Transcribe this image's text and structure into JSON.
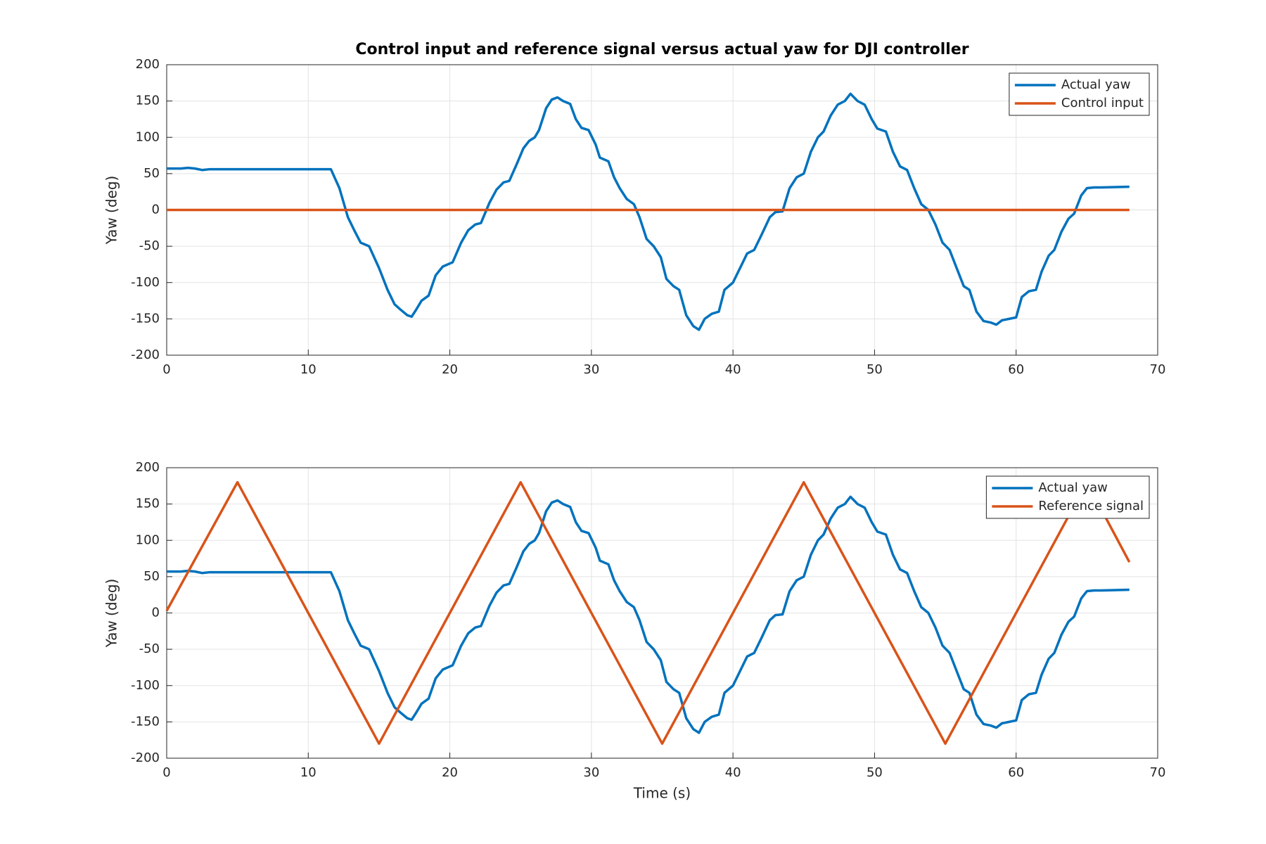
{
  "chart_data": [
    {
      "type": "line",
      "title": "Control input and reference signal versus actual yaw for DJI controller",
      "ylabel": "Yaw (deg)",
      "xlim": [
        0,
        70
      ],
      "xticks": [
        0,
        10,
        20,
        30,
        40,
        50,
        60,
        70
      ],
      "ylim": [
        -200,
        200
      ],
      "yticks": [
        -200,
        -150,
        -100,
        -50,
        0,
        50,
        100,
        150,
        200
      ],
      "grid": true,
      "legend": "northeast",
      "series": [
        {
          "name": "Actual yaw",
          "color": "#0072BD",
          "x": [
            0,
            0.5,
            1,
            1.5,
            2,
            2.5,
            3,
            11.6,
            12.2,
            12.8,
            13.3,
            13.7,
            14.3,
            15.0,
            15.6,
            16.1,
            16.5,
            17.0,
            17.3,
            17.6,
            18.0,
            18.5,
            19.0,
            19.5,
            20.2,
            20.8,
            21.3,
            21.8,
            22.2,
            22.8,
            23.3,
            23.8,
            24.2,
            24.7,
            25.2,
            25.6,
            26.0,
            26.3,
            26.8,
            27.2,
            27.6,
            28.0,
            28.5,
            28.9,
            29.3,
            29.8,
            30.3,
            30.6,
            31.2,
            31.6,
            32.0,
            32.5,
            33.0,
            33.4,
            33.9,
            34.4,
            34.9,
            35.3,
            35.8,
            36.2,
            36.7,
            37.2,
            37.6,
            38.0,
            38.5,
            39.0,
            39.4,
            40.0,
            40.5,
            41.0,
            41.5,
            42.0,
            42.6,
            43.0,
            43.5,
            44.0,
            44.5,
            45.0,
            45.5,
            46.0,
            46.4,
            46.9,
            47.4,
            47.9,
            48.3,
            48.8,
            49.3,
            49.8,
            50.2,
            50.8,
            51.3,
            51.8,
            52.3,
            52.8,
            53.3,
            53.8,
            54.3,
            54.8,
            55.3,
            55.8,
            56.3,
            56.7,
            57.2,
            57.7,
            58.2,
            58.6,
            59.0,
            59.5,
            60.0,
            60.4,
            60.9,
            61.4,
            61.8,
            62.3,
            62.7,
            63.2,
            63.7,
            64.1,
            64.6,
            65.0,
            65.5,
            66.0,
            68.0
          ],
          "values": [
            57,
            57,
            57,
            58,
            57,
            55,
            56,
            56,
            30,
            -10,
            -30,
            -45,
            -50,
            -80,
            -110,
            -130,
            -137,
            -145,
            -147,
            -138,
            -125,
            -118,
            -90,
            -78,
            -72,
            -45,
            -28,
            -20,
            -18,
            10,
            28,
            38,
            40,
            62,
            85,
            95,
            100,
            110,
            140,
            152,
            155,
            150,
            146,
            125,
            113,
            110,
            90,
            72,
            67,
            45,
            30,
            15,
            8,
            -10,
            -40,
            -50,
            -65,
            -95,
            -105,
            -110,
            -145,
            -160,
            -165,
            -150,
            -143,
            -140,
            -110,
            -100,
            -80,
            -60,
            -55,
            -35,
            -10,
            -3,
            -2,
            30,
            45,
            50,
            80,
            100,
            108,
            130,
            145,
            150,
            160,
            150,
            145,
            125,
            112,
            108,
            80,
            60,
            55,
            30,
            8,
            0,
            -20,
            -45,
            -55,
            -80,
            -105,
            -110,
            -140,
            -153,
            -155,
            -158,
            -152,
            -150,
            -148,
            -120,
            -112,
            -110,
            -85,
            -63,
            -55,
            -30,
            -12,
            -5,
            20,
            30,
            31,
            31,
            32
          ]
        },
        {
          "name": "Control input",
          "color": "#D95319",
          "x": [
            0,
            68
          ],
          "values": [
            0,
            0
          ]
        }
      ]
    },
    {
      "type": "line",
      "ylabel": "Yaw (deg)",
      "xlabel": "Time (s)",
      "xlim": [
        0,
        70
      ],
      "xticks": [
        0,
        10,
        20,
        30,
        40,
        50,
        60,
        70
      ],
      "ylim": [
        -200,
        200
      ],
      "yticks": [
        -200,
        -150,
        -100,
        -50,
        0,
        50,
        100,
        150,
        200
      ],
      "grid": true,
      "legend": "northeast",
      "series": [
        {
          "name": "Actual yaw",
          "color": "#0072BD",
          "x": [
            0,
            0.5,
            1,
            1.5,
            2,
            2.5,
            3,
            11.6,
            12.2,
            12.8,
            13.3,
            13.7,
            14.3,
            15.0,
            15.6,
            16.1,
            16.5,
            17.0,
            17.3,
            17.6,
            18.0,
            18.5,
            19.0,
            19.5,
            20.2,
            20.8,
            21.3,
            21.8,
            22.2,
            22.8,
            23.3,
            23.8,
            24.2,
            24.7,
            25.2,
            25.6,
            26.0,
            26.3,
            26.8,
            27.2,
            27.6,
            28.0,
            28.5,
            28.9,
            29.3,
            29.8,
            30.3,
            30.6,
            31.2,
            31.6,
            32.0,
            32.5,
            33.0,
            33.4,
            33.9,
            34.4,
            34.9,
            35.3,
            35.8,
            36.2,
            36.7,
            37.2,
            37.6,
            38.0,
            38.5,
            39.0,
            39.4,
            40.0,
            40.5,
            41.0,
            41.5,
            42.0,
            42.6,
            43.0,
            43.5,
            44.0,
            44.5,
            45.0,
            45.5,
            46.0,
            46.4,
            46.9,
            47.4,
            47.9,
            48.3,
            48.8,
            49.3,
            49.8,
            50.2,
            50.8,
            51.3,
            51.8,
            52.3,
            52.8,
            53.3,
            53.8,
            54.3,
            54.8,
            55.3,
            55.8,
            56.3,
            56.7,
            57.2,
            57.7,
            58.2,
            58.6,
            59.0,
            59.5,
            60.0,
            60.4,
            60.9,
            61.4,
            61.8,
            62.3,
            62.7,
            63.2,
            63.7,
            64.1,
            64.6,
            65.0,
            65.5,
            66.0,
            68.0
          ],
          "values": [
            57,
            57,
            57,
            58,
            57,
            55,
            56,
            56,
            30,
            -10,
            -30,
            -45,
            -50,
            -80,
            -110,
            -130,
            -137,
            -145,
            -147,
            -138,
            -125,
            -118,
            -90,
            -78,
            -72,
            -45,
            -28,
            -20,
            -18,
            10,
            28,
            38,
            40,
            62,
            85,
            95,
            100,
            110,
            140,
            152,
            155,
            150,
            146,
            125,
            113,
            110,
            90,
            72,
            67,
            45,
            30,
            15,
            8,
            -10,
            -40,
            -50,
            -65,
            -95,
            -105,
            -110,
            -145,
            -160,
            -165,
            -150,
            -143,
            -140,
            -110,
            -100,
            -80,
            -60,
            -55,
            -35,
            -10,
            -3,
            -2,
            30,
            45,
            50,
            80,
            100,
            108,
            130,
            145,
            150,
            160,
            150,
            145,
            125,
            112,
            108,
            80,
            60,
            55,
            30,
            8,
            0,
            -20,
            -45,
            -55,
            -80,
            -105,
            -110,
            -140,
            -153,
            -155,
            -158,
            -152,
            -150,
            -148,
            -120,
            -112,
            -110,
            -85,
            -63,
            -55,
            -30,
            -12,
            -5,
            20,
            30,
            31,
            31,
            32
          ]
        },
        {
          "name": "Reference signal",
          "color": "#D95319",
          "x": [
            0,
            5,
            15,
            25,
            35,
            45,
            55,
            65,
            68
          ],
          "values": [
            3,
            180,
            -180,
            180,
            -180,
            180,
            -180,
            180,
            70
          ]
        }
      ]
    }
  ]
}
